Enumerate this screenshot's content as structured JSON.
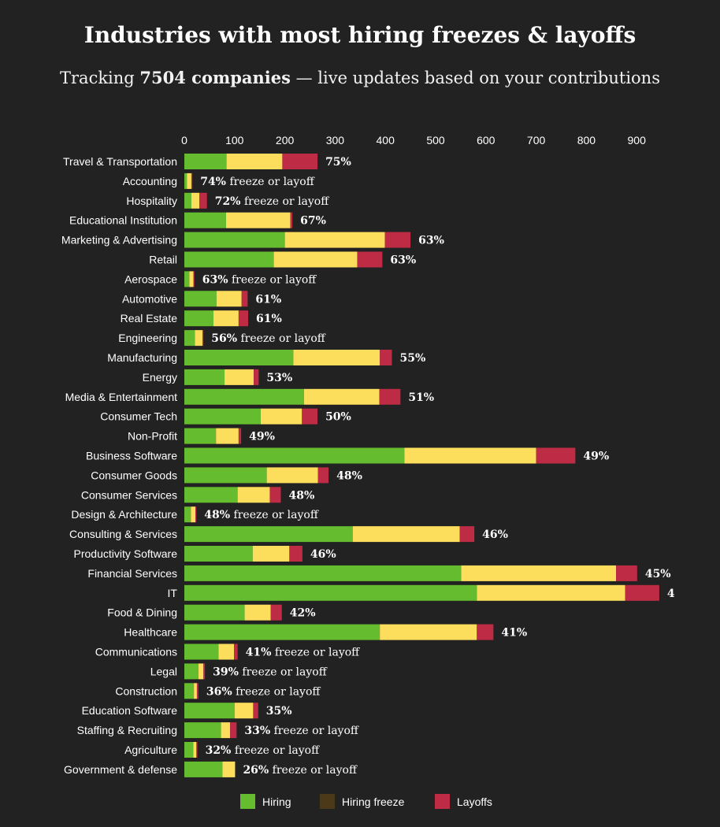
{
  "title": "Industries with most hiring freezes & layoffs",
  "subtitle": {
    "prefix": "Tracking ",
    "count": "7504 companies",
    "suffix": " — live updates based on your contributions"
  },
  "colors": {
    "hiring": "#65bc2f",
    "freeze": "#fddd5c",
    "freeze_legend": "#4a3a18",
    "layoffs": "#bd2b44",
    "background": "#222222",
    "text": "#ffffff"
  },
  "legend": {
    "hiring": "Hiring",
    "freeze": "Hiring freeze",
    "layoffs": "Layoffs"
  },
  "chart_data": {
    "type": "bar",
    "orientation": "horizontal",
    "stacked": true,
    "x_ticks": [
      0,
      100,
      200,
      300,
      400,
      500,
      600,
      700,
      800,
      900
    ],
    "xlim": [
      0,
      900
    ],
    "categories": [
      "Travel & Transportation",
      "Accounting",
      "Hospitality",
      "Educational Institution",
      "Marketing & Advertising",
      "Retail",
      "Aerospace",
      "Automotive",
      "Real Estate",
      "Engineering",
      "Manufacturing",
      "Energy",
      "Media & Entertainment",
      "Consumer Tech",
      "Non-Profit",
      "Business Software",
      "Consumer Goods",
      "Consumer Services",
      "Design & Architecture",
      "Consulting & Services",
      "Productivity Software",
      "Financial Services",
      "IT",
      "Food & Dining",
      "Healthcare",
      "Communications",
      "Legal",
      "Construction",
      "Education Software",
      "Staffing & Recruiting",
      "Agriculture",
      "Government & defense"
    ],
    "series": [
      {
        "name": "Hiring",
        "values": [
          84,
          5,
          14,
          83,
          200,
          178,
          10,
          64,
          58,
          21,
          217,
          80,
          238,
          152,
          63,
          438,
          164,
          106,
          13,
          335,
          136,
          551,
          582,
          120,
          389,
          68,
          28,
          19,
          100,
          73,
          18,
          76
        ]
      },
      {
        "name": "Hiring freeze",
        "values": [
          111,
          9,
          16,
          128,
          199,
          166,
          8,
          50,
          50,
          15,
          172,
          58,
          150,
          82,
          45,
          262,
          102,
          64,
          9,
          213,
          73,
          308,
          295,
          52,
          193,
          31,
          10,
          6,
          37,
          18,
          6,
          25
        ]
      },
      {
        "name": "Layoffs",
        "values": [
          70,
          2,
          15,
          4,
          51,
          50,
          2,
          12,
          19,
          2,
          24,
          10,
          42,
          31,
          5,
          78,
          21,
          22,
          2,
          29,
          26,
          42,
          68,
          22,
          33,
          7,
          3,
          3,
          10,
          13,
          2,
          0
        ]
      }
    ],
    "labels": [
      "75%",
      "74% freeze or layoff",
      "72% freeze or layoff",
      "67%",
      "63%",
      "63%",
      "63% freeze or layoff",
      "61%",
      "61%",
      "56% freeze or layoff",
      "55%",
      "53%",
      "51%",
      "50%",
      "49%",
      "49%",
      "48%",
      "48%",
      "48% freeze or layoff",
      "46%",
      "46%",
      "45%",
      "4",
      "42%",
      "41%",
      "41% freeze or layoff",
      "39% freeze or layoff",
      "36% freeze or layoff",
      "35%",
      "33% freeze or layoff",
      "32% freeze or layoff",
      "26% freeze or layoff"
    ]
  }
}
